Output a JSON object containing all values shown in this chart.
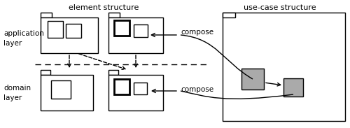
{
  "title_left": "element structure",
  "title_right": "use-case structure",
  "bg_color": "#ffffff",
  "line_color": "#000000",
  "gray_fill": "#aaaaaa",
  "white_fill": "#ffffff",
  "app_label": "application\nlayer",
  "domain_label": "domain\nlayer",
  "compose_label": "compose"
}
